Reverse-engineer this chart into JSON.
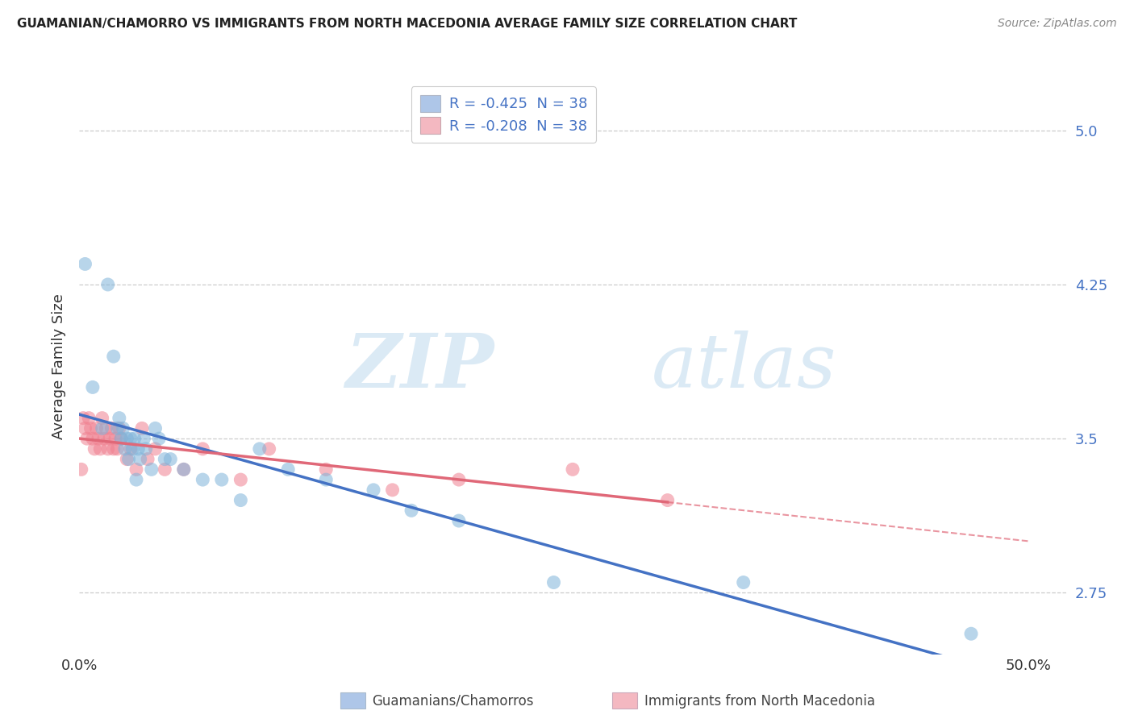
{
  "title": "GUAMANIAN/CHAMORRO VS IMMIGRANTS FROM NORTH MACEDONIA AVERAGE FAMILY SIZE CORRELATION CHART",
  "source": "Source: ZipAtlas.com",
  "ylabel": "Average Family Size",
  "xlim": [
    0.0,
    0.52
  ],
  "ylim": [
    2.45,
    5.25
  ],
  "yticks": [
    2.75,
    3.5,
    4.25,
    5.0
  ],
  "xticks": [
    0.0,
    0.5
  ],
  "xticklabels": [
    "0.0%",
    "50.0%"
  ],
  "legend_r1": "R = -0.425  N = 38",
  "legend_r2": "R = -0.208  N = 38",
  "legend_color1": "#aec6e8",
  "legend_color2": "#f4b8c1",
  "scatter_color1": "#7fb3d9",
  "scatter_color2": "#f08090",
  "line_color1": "#4472c4",
  "line_color2": "#e06878",
  "watermark_zip": "ZIP",
  "watermark_atlas": "atlas",
  "bottom_label1": "Guamanians/Chamorros",
  "bottom_label2": "Immigrants from North Macedonia",
  "blue_x": [
    0.003,
    0.007,
    0.012,
    0.015,
    0.018,
    0.02,
    0.021,
    0.022,
    0.023,
    0.024,
    0.025,
    0.026,
    0.027,
    0.028,
    0.029,
    0.03,
    0.031,
    0.032,
    0.034,
    0.035,
    0.038,
    0.04,
    0.042,
    0.045,
    0.048,
    0.055,
    0.065,
    0.075,
    0.085,
    0.095,
    0.11,
    0.13,
    0.155,
    0.175,
    0.2,
    0.25,
    0.35,
    0.47
  ],
  "blue_y": [
    4.35,
    3.75,
    3.55,
    4.25,
    3.9,
    3.55,
    3.6,
    3.5,
    3.55,
    3.45,
    3.5,
    3.4,
    3.5,
    3.45,
    3.5,
    3.3,
    3.45,
    3.4,
    3.5,
    3.45,
    3.35,
    3.55,
    3.5,
    3.4,
    3.4,
    3.35,
    3.3,
    3.3,
    3.2,
    3.45,
    3.35,
    3.3,
    3.25,
    3.15,
    3.1,
    2.8,
    2.8,
    2.55
  ],
  "pink_x": [
    0.001,
    0.002,
    0.003,
    0.004,
    0.005,
    0.006,
    0.007,
    0.008,
    0.009,
    0.01,
    0.011,
    0.012,
    0.013,
    0.014,
    0.015,
    0.016,
    0.017,
    0.018,
    0.019,
    0.02,
    0.021,
    0.022,
    0.025,
    0.027,
    0.03,
    0.033,
    0.036,
    0.04,
    0.045,
    0.055,
    0.065,
    0.085,
    0.1,
    0.13,
    0.165,
    0.2,
    0.26,
    0.31
  ],
  "pink_y": [
    3.35,
    3.6,
    3.55,
    3.5,
    3.6,
    3.55,
    3.5,
    3.45,
    3.55,
    3.5,
    3.45,
    3.6,
    3.5,
    3.55,
    3.45,
    3.5,
    3.55,
    3.45,
    3.5,
    3.45,
    3.55,
    3.5,
    3.4,
    3.45,
    3.35,
    3.55,
    3.4,
    3.45,
    3.35,
    3.35,
    3.45,
    3.3,
    3.45,
    3.35,
    3.25,
    3.3,
    3.35,
    3.2
  ]
}
